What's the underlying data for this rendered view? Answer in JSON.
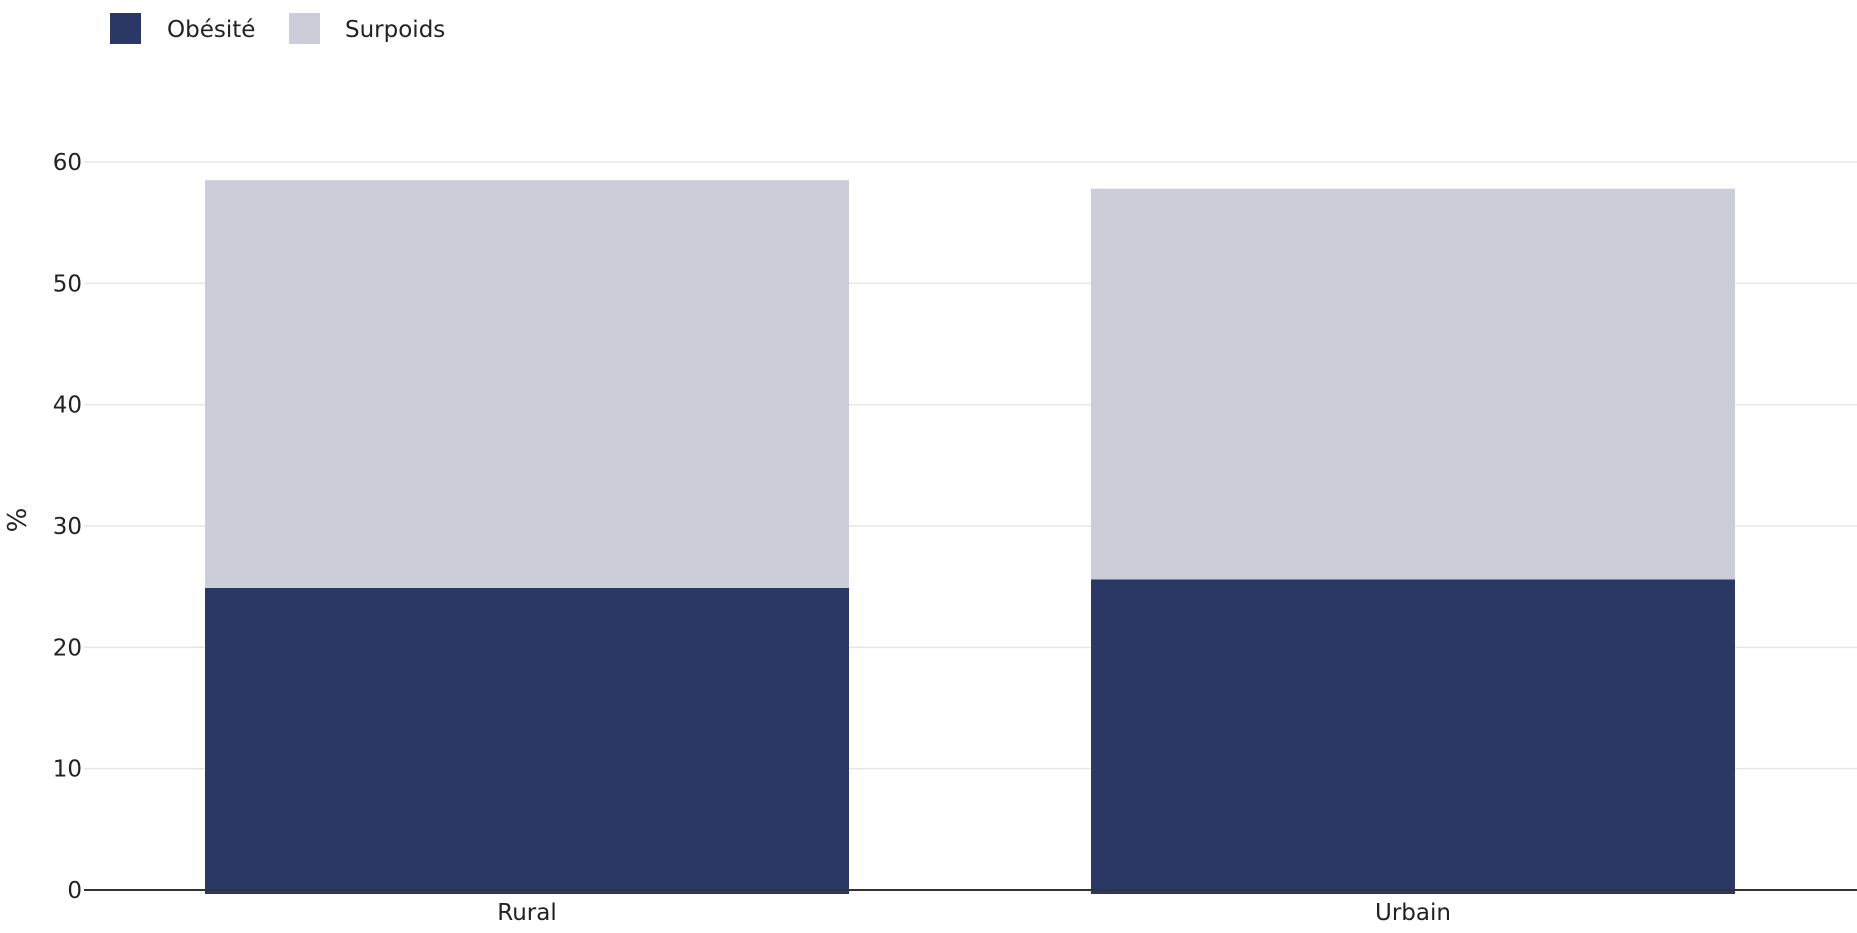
{
  "chart_data": {
    "type": "bar",
    "stacked": true,
    "categories": [
      "Rural",
      "Urbain"
    ],
    "series": [
      {
        "name": "Obésité",
        "values": [
          24.9,
          25.6
        ],
        "color": "#2b3764"
      },
      {
        "name": "Surpoids",
        "values": [
          33.6,
          32.2
        ],
        "color": "#cbcdd9"
      }
    ],
    "title": "",
    "xlabel": "",
    "ylabel": "%",
    "ylim": [
      0,
      60
    ],
    "yticks": [
      0,
      10,
      20,
      30,
      40,
      50,
      60
    ],
    "grid": true,
    "legend_position": "top-left"
  }
}
